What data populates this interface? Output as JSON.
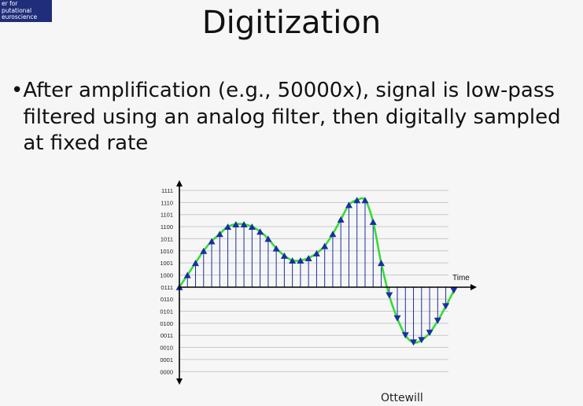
{
  "logo": {
    "text": "er for\nputational\neuroscience"
  },
  "slide": {
    "title": "Digitization",
    "bullet": "After amplification (e.g., 50000x), signal is low-pass filtered using an analog filter, then digitally sampled at fixed rate",
    "credit": "Ottewill"
  },
  "chart_data": {
    "type": "line",
    "xlabel": "Time",
    "ylabel": "",
    "y_tick_labels": [
      "1111",
      "1110",
      "1101",
      "1100",
      "1011",
      "1010",
      "1001",
      "1000",
      "0111",
      "0110",
      "0101",
      "0100",
      "0011",
      "0010",
      "0001",
      "0000"
    ],
    "ylim": [
      0,
      15
    ],
    "grid": true,
    "colors": {
      "signal": "#33dd33",
      "samples": "#1a2fa0",
      "grid": "#c8c8c8",
      "axis": "#000000"
    },
    "series": [
      {
        "values": [
          7.0,
          8.0,
          9.0,
          10.0,
          10.8,
          11.4,
          12.0,
          12.2,
          12.2,
          12.0,
          11.6,
          11.0,
          10.2,
          9.6,
          9.2,
          9.2,
          9.4,
          9.8,
          10.4,
          11.4,
          12.6,
          13.8,
          14.2,
          14.2,
          12.4,
          9.0,
          6.3,
          4.4,
          3.0,
          2.4,
          2.6,
          3.2,
          4.2,
          5.4,
          6.7
        ]
      }
    ]
  }
}
